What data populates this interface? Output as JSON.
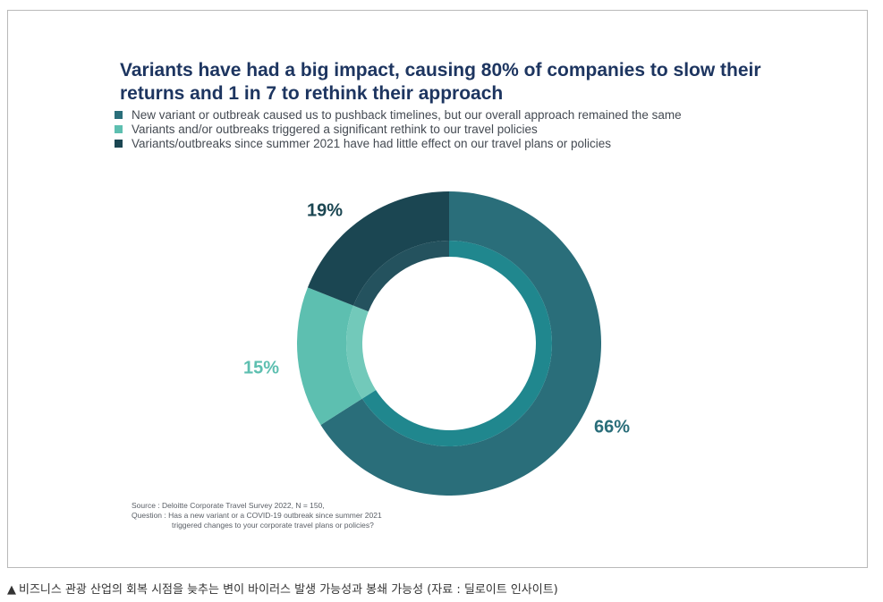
{
  "chart_data": {
    "type": "pie",
    "title_lines": [
      "Variants have had a big impact, causing 80% of companies to slow their",
      "returns and 1 in 7 to rethink their approach"
    ],
    "series": [
      {
        "name": "New variant or outbreak caused us to pushback timelines, but our overall approach remained the same",
        "value": 66,
        "label": "66%",
        "color": "#2a6e7a",
        "inner_color": "#20878e",
        "label_color": "#2a6e7a"
      },
      {
        "name": "Variants and/or outbreaks triggered a significant rethink to our travel policies",
        "value": 15,
        "label": "15%",
        "color": "#5dbfb0",
        "inner_color": "#72c9ba",
        "label_color": "#5dbfb0"
      },
      {
        "name": "Variants/outbreaks since summer 2021 have had little effect on our travel plans or policies",
        "value": 19,
        "label": "19%",
        "color": "#1b4652",
        "inner_color": "#24525e",
        "label_color": "#1b4652"
      }
    ],
    "donut": true,
    "legend_position": "top-left"
  },
  "source": {
    "line1": "Source : Deloitte Corporate Travel Survey 2022, N = 150,",
    "line2": "Question : Has a new variant or a COVID-19 outbreak since summer 2021",
    "line3": "triggered changes to your corporate travel plans or policies?"
  },
  "caption": {
    "marker": "▲",
    "text": "비즈니스 관광 산업의 회복 시점을 늦추는 변이 바이러스 발생 가능성과 봉쇄 가능성 (자료 : 딜로이트 인사이트)"
  }
}
